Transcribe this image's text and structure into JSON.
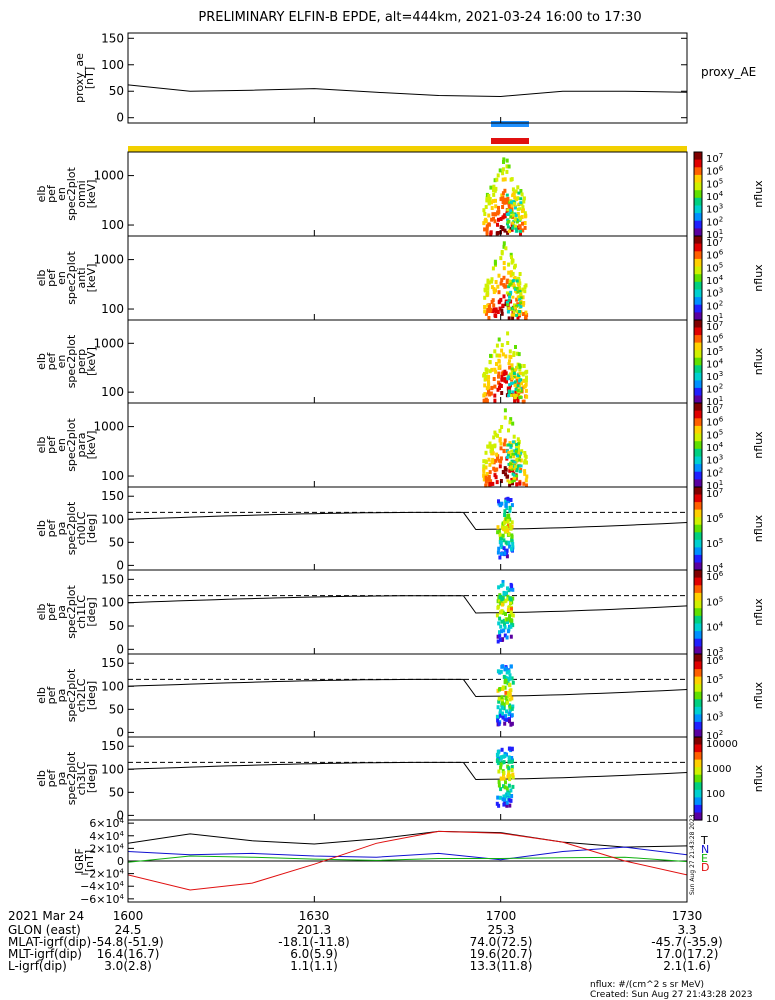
{
  "title": "PRELIMINARY ELFIN-B EPDE, alt=444km, 2021-03-24 16:00 to 17:30",
  "colors": {
    "sci_zone_blue": "#1e90ff",
    "sci_zone_red": "#e01010",
    "orbit_bar": "#f2d000",
    "ae_line": "#000000",
    "grid_line": "#000000",
    "B_T": "#000000",
    "B_N": "#1010d0",
    "B_E": "#10b010",
    "B_D": "#e01010"
  },
  "colormap": [
    "#ffffff",
    "#5a00a0",
    "#2020ff",
    "#0090ff",
    "#00d0d0",
    "#00d080",
    "#60e000",
    "#d0f000",
    "#ffd000",
    "#ff6000",
    "#e00000",
    "#800000"
  ],
  "time_axis": {
    "date_label": "2021 Mar 24",
    "ticks": [
      "1600",
      "1630",
      "1700",
      "1730"
    ],
    "tick_minutes": [
      0,
      30,
      60,
      90
    ],
    "range_minutes": [
      0,
      90
    ]
  },
  "ephemeris": [
    {
      "label": "GLON (east)",
      "values": [
        "24.5",
        "201.3",
        "25.3",
        "3.3"
      ]
    },
    {
      "label": "MLAT-igrf(dip)",
      "values": [
        "-54.8(-51.9)",
        "-18.1(-11.8)",
        "74.0(72.5)",
        "-45.7(-35.9)"
      ]
    },
    {
      "label": "MLT-igrf(dip)",
      "values": [
        "16.4(16.7)",
        "6.0(5.9)",
        "19.6(20.7)",
        "17.0(17.2)"
      ]
    },
    {
      "label": "L-igrf(dip)",
      "values": [
        "3.0(2.8)",
        "1.1(1.1)",
        "13.3(11.8)",
        "2.1(1.6)"
      ]
    }
  ],
  "footer": {
    "units_note": "nflux: #/(cm^2 s sr MeV)",
    "created": "Created: Sun Aug 27 21:43:28 2023",
    "side_stamp": "Sun Aug 27 21:43:28 2023"
  },
  "panels": [
    {
      "ylabel": [
        "proxy_ae",
        "[nT]"
      ],
      "right_label": "proxy_AE",
      "kind": "line",
      "yticks": [
        "150",
        "100",
        "50",
        "0"
      ],
      "ytick_values": [
        150,
        100,
        50,
        0
      ],
      "ylim": [
        -10,
        160
      ]
    },
    {
      "ylabel": [
        "elb",
        "pef",
        "en",
        "spec2plot",
        "omni",
        "[keV]"
      ],
      "kind": "energy",
      "yticks": [
        "1000",
        "100"
      ],
      "colorbar_title": "nflux",
      "cb_ticks": [
        "10<tspan baseline-shift='super' font-size='7'>7</tspan>",
        "10<tspan baseline-shift='super' font-size='7'>6</tspan>",
        "10<tspan baseline-shift='super' font-size='7'>5</tspan>",
        "10<tspan baseline-shift='super' font-size='7'>4</tspan>",
        "10<tspan baseline-shift='super' font-size='7'>3</tspan>",
        "10<tspan baseline-shift='super' font-size='7'>2</tspan>",
        "10<tspan baseline-shift='super' font-size='7'>1</tspan>"
      ]
    },
    {
      "ylabel": [
        "elb",
        "pef",
        "en",
        "spec2plot",
        "anti",
        "[keV]"
      ],
      "kind": "energy",
      "yticks": [
        "1000",
        "100"
      ],
      "colorbar_title": "nflux",
      "cb_ticks": [
        "10<tspan baseline-shift='super' font-size='7'>7</tspan>",
        "10<tspan baseline-shift='super' font-size='7'>6</tspan>",
        "10<tspan baseline-shift='super' font-size='7'>5</tspan>",
        "10<tspan baseline-shift='super' font-size='7'>4</tspan>",
        "10<tspan baseline-shift='super' font-size='7'>3</tspan>",
        "10<tspan baseline-shift='super' font-size='7'>2</tspan>",
        "10<tspan baseline-shift='super' font-size='7'>1</tspan>"
      ]
    },
    {
      "ylabel": [
        "elb",
        "pef",
        "en",
        "spec2plot",
        "perp",
        "[keV]"
      ],
      "kind": "energy",
      "yticks": [
        "1000",
        "100"
      ],
      "colorbar_title": "nflux",
      "cb_ticks": [
        "10<tspan baseline-shift='super' font-size='7'>7</tspan>",
        "10<tspan baseline-shift='super' font-size='7'>6</tspan>",
        "10<tspan baseline-shift='super' font-size='7'>5</tspan>",
        "10<tspan baseline-shift='super' font-size='7'>4</tspan>",
        "10<tspan baseline-shift='super' font-size='7'>3</tspan>",
        "10<tspan baseline-shift='super' font-size='7'>2</tspan>",
        "10<tspan baseline-shift='super' font-size='7'>1</tspan>"
      ]
    },
    {
      "ylabel": [
        "elb",
        "pef",
        "en",
        "spec2plot",
        "para",
        "[keV]"
      ],
      "kind": "energy",
      "yticks": [
        "1000",
        "100"
      ],
      "colorbar_title": "nflux",
      "cb_ticks": [
        "10<tspan baseline-shift='super' font-size='7'>7</tspan>",
        "10<tspan baseline-shift='super' font-size='7'>6</tspan>",
        "10<tspan baseline-shift='super' font-size='7'>5</tspan>",
        "10<tspan baseline-shift='super' font-size='7'>4</tspan>",
        "10<tspan baseline-shift='super' font-size='7'>3</tspan>",
        "10<tspan baseline-shift='super' font-size='7'>2</tspan>",
        "10<tspan baseline-shift='super' font-size='7'>1</tspan>"
      ]
    },
    {
      "ylabel": [
        "elb",
        "pef",
        "pa",
        "spec2plot",
        "ch0LC",
        "[deg]"
      ],
      "kind": "pitch",
      "yticks": [
        "150",
        "100",
        "50",
        "0"
      ],
      "colorbar_title": "nflux",
      "cb_ticks": [
        "10<tspan baseline-shift='super' font-size='7'>7</tspan>",
        "10<tspan baseline-shift='super' font-size='7'>6</tspan>",
        "10<tspan baseline-shift='super' font-size='7'>5</tspan>",
        "10<tspan baseline-shift='super' font-size='7'>4</tspan>"
      ]
    },
    {
      "ylabel": [
        "elb",
        "pef",
        "pa",
        "spec2plot",
        "ch1LC",
        "[deg]"
      ],
      "kind": "pitch",
      "yticks": [
        "150",
        "100",
        "50",
        "0"
      ],
      "colorbar_title": "nflux",
      "cb_ticks": [
        "10<tspan baseline-shift='super' font-size='7'>6</tspan>",
        "10<tspan baseline-shift='super' font-size='7'>5</tspan>",
        "10<tspan baseline-shift='super' font-size='7'>4</tspan>",
        "10<tspan baseline-shift='super' font-size='7'>3</tspan>"
      ]
    },
    {
      "ylabel": [
        "elb",
        "pef",
        "pa",
        "spec2plot",
        "ch2LC",
        "[deg]"
      ],
      "kind": "pitch",
      "yticks": [
        "150",
        "100",
        "50",
        "0"
      ],
      "colorbar_title": "nflux",
      "cb_ticks": [
        "10<tspan baseline-shift='super' font-size='7'>6</tspan>",
        "10<tspan baseline-shift='super' font-size='7'>5</tspan>",
        "10<tspan baseline-shift='super' font-size='7'>4</tspan>",
        "10<tspan baseline-shift='super' font-size='7'>3</tspan>",
        "10<tspan baseline-shift='super' font-size='7'>2</tspan>"
      ]
    },
    {
      "ylabel": [
        "elb",
        "pef",
        "pa",
        "spec2plot",
        "ch3LC",
        "[deg]"
      ],
      "kind": "pitch",
      "yticks": [
        "150",
        "100",
        "50",
        "0"
      ],
      "colorbar_title": "nflux",
      "cb_ticks": [
        "10000",
        "1000",
        "100",
        "10"
      ]
    },
    {
      "ylabel": [
        "IGRF",
        "[nT]"
      ],
      "kind": "igrf",
      "yticks": [
        "6×10<tspan baseline-shift='super' font-size='7'>4</tspan>",
        "4×10<tspan baseline-shift='super' font-size='7'>4</tspan>",
        "2×10<tspan baseline-shift='super' font-size='7'>4</tspan>",
        "0",
        "−2×10<tspan baseline-shift='super' font-size='7'>4</tspan>",
        "−4×10<tspan baseline-shift='super' font-size='7'>4</tspan>",
        "−6×10<tspan baseline-shift='super' font-size='7'>4</tspan>"
      ],
      "ytick_values": [
        60000,
        40000,
        20000,
        0,
        -20000,
        -40000,
        -60000
      ],
      "ylim": [
        -65000,
        65000
      ],
      "legend": [
        "T",
        "N",
        "E",
        "D"
      ]
    }
  ],
  "chart_data": {
    "type": "line",
    "title": "PRELIMINARY ELFIN-B EPDE, alt=444km, 2021-03-24 16:00 to 17:30",
    "x_units": "UT HHMM",
    "x": [
      "1600",
      "1610",
      "1620",
      "1630",
      "1640",
      "1650",
      "1700",
      "1710",
      "1720",
      "1730"
    ],
    "series": [
      {
        "name": "proxy_AE",
        "values": [
          62,
          50,
          52,
          55,
          48,
          42,
          40,
          50,
          50,
          48
        ]
      },
      {
        "name": "T",
        "values": [
          28000,
          43000,
          32000,
          27000,
          35000,
          47000,
          45000,
          30000,
          22000,
          24000
        ]
      },
      {
        "name": "N",
        "values": [
          15000,
          10000,
          12000,
          8000,
          6000,
          12000,
          2000,
          15000,
          22000,
          10000
        ]
      },
      {
        "name": "E",
        "values": [
          -2000,
          8000,
          6000,
          3000,
          1000,
          4000,
          4000,
          5000,
          6000,
          -1000
        ]
      },
      {
        "name": "D",
        "values": [
          -22000,
          -46000,
          -35000,
          -5000,
          28000,
          47000,
          44000,
          30000,
          0,
          -22000
        ]
      }
    ],
    "ylim_ae": [
      0,
      150
    ],
    "ylim_igrf": [
      -60000,
      60000
    ],
    "spectrograms": {
      "active_interval": [
        "1657",
        "1704"
      ],
      "energy_range_keV": [
        100,
        1000
      ],
      "pitch_angle_range_deg": [
        0,
        150
      ],
      "loss_cone_deg": [
        100,
        115
      ]
    }
  }
}
